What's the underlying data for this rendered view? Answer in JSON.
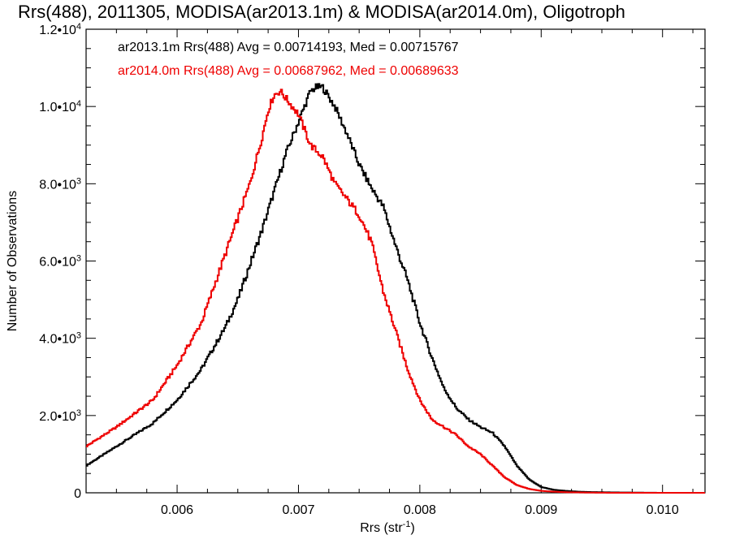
{
  "chart_data": {
    "type": "line",
    "title": "Rrs(488), 2011305, MODISA(ar2013.1m) & MODISA(ar2014.0m), Oligotroph",
    "xlabel": "Rrs (str",
    "xlabel_sup": "-1",
    "xlabel_close": ")",
    "ylabel": "Number of Observations",
    "xlim": [
      0.00525,
      0.01035
    ],
    "ylim": [
      0,
      12000
    ],
    "grid": false,
    "x_ticks": [
      0.006,
      0.007,
      0.008,
      0.009,
      0.01
    ],
    "x_tick_labels": [
      "0.006",
      "0.007",
      "0.008",
      "0.009",
      "0.010"
    ],
    "y_ticks": [
      0,
      2000,
      4000,
      6000,
      8000,
      10000,
      12000
    ],
    "y_tick_labels": [
      {
        "mant": "0",
        "exp": ""
      },
      {
        "mant": "2.0•1",
        "mant_base": "0",
        "exp": "3"
      },
      {
        "mant": "4.0•1",
        "mant_base": "0",
        "exp": "3"
      },
      {
        "mant": "6.0•1",
        "mant_base": "0",
        "exp": "3"
      },
      {
        "mant": "8.0•1",
        "mant_base": "0",
        "exp": "3"
      },
      {
        "mant": "1.0•1",
        "mant_base": "0",
        "exp": "4"
      },
      {
        "mant": "1.2•1",
        "mant_base": "0",
        "exp": "4"
      }
    ],
    "legend": [
      "ar2013.1m Rrs(488) Avg = 0.00714193, Med = 0.00715767",
      "ar2014.0m Rrs(488) Avg = 0.00687962, Med = 0.00689633"
    ],
    "series": [
      {
        "color": "#000000",
        "x": [
          0.00525,
          0.0055,
          0.0058,
          0.006,
          0.0062,
          0.0064,
          0.0065,
          0.0066,
          0.0067,
          0.0068,
          0.0069,
          0.007,
          0.00705,
          0.0071,
          0.00715,
          0.0072,
          0.0073,
          0.0074,
          0.0075,
          0.0076,
          0.0077,
          0.0078,
          0.0079,
          0.008,
          0.0081,
          0.0082,
          0.0083,
          0.0084,
          0.0085,
          0.0086,
          0.0087,
          0.0088,
          0.0089,
          0.009,
          0.0091,
          0.0092,
          0.0093,
          0.0094,
          0.0096,
          0.0098,
          0.01,
          0.01035
        ],
        "y": [
          700,
          1200,
          1800,
          2400,
          3200,
          4300,
          5000,
          5900,
          6800,
          7800,
          8800,
          9600,
          10000,
          10400,
          10500,
          10500,
          10000,
          9300,
          8500,
          7900,
          7400,
          6400,
          5500,
          4400,
          3500,
          2700,
          2200,
          1900,
          1700,
          1550,
          1200,
          700,
          350,
          150,
          80,
          50,
          30,
          20,
          10,
          5,
          0,
          0
        ]
      },
      {
        "color": "#ee0000",
        "x": [
          0.00525,
          0.0055,
          0.0058,
          0.006,
          0.0062,
          0.0063,
          0.0064,
          0.0065,
          0.0066,
          0.0067,
          0.00675,
          0.0068,
          0.00685,
          0.0069,
          0.007,
          0.0071,
          0.0072,
          0.0073,
          0.0074,
          0.0075,
          0.0076,
          0.0077,
          0.0078,
          0.0079,
          0.008,
          0.0081,
          0.0082,
          0.0083,
          0.0084,
          0.0085,
          0.0086,
          0.0087,
          0.0088,
          0.0089,
          0.009,
          0.0091,
          0.0092,
          0.0094,
          0.0096,
          0.01035
        ],
        "y": [
          1200,
          1700,
          2400,
          3300,
          4400,
          5300,
          6200,
          7100,
          8000,
          9200,
          9900,
          10300,
          10400,
          10200,
          9800,
          9000,
          8700,
          8000,
          7600,
          7200,
          6500,
          5200,
          4200,
          3200,
          2400,
          1900,
          1700,
          1500,
          1200,
          1000,
          700,
          400,
          200,
          100,
          50,
          30,
          15,
          5,
          0,
          0
        ]
      }
    ]
  }
}
